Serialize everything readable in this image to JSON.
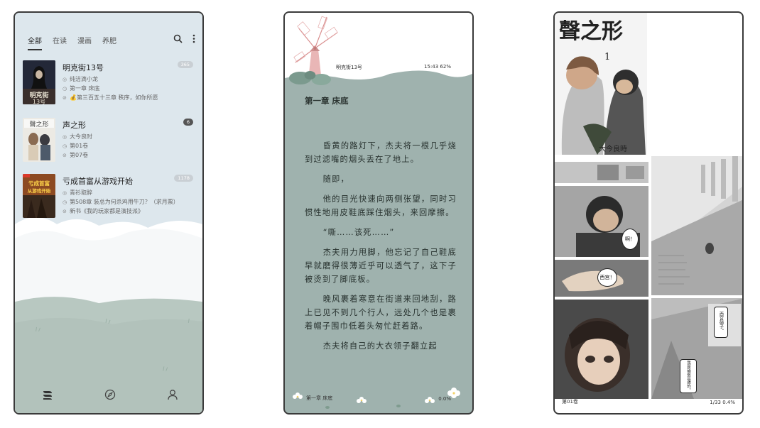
{
  "shelf": {
    "tabs": [
      {
        "label": "全部",
        "active": true
      },
      {
        "label": "在读",
        "active": false
      },
      {
        "label": "漫画",
        "active": false
      },
      {
        "label": "养肥",
        "active": false
      }
    ],
    "books": [
      {
        "title": "明克街13号",
        "author": "纯洁滴小龙",
        "progress": "第一章 床底",
        "latest": "💰第三百五十三章 秩序，如你所愿",
        "badge": "365",
        "cover_text": "明克街13号"
      },
      {
        "title": "声之形",
        "author": "大今良时",
        "progress": "第01卷",
        "latest": "第07卷",
        "badge": "6",
        "cover_text": ""
      },
      {
        "title": "亏成首富从游戏开始",
        "author": "青衫取醉",
        "progress": "第508章 装总为何杀鸡用牛刀？（求月票）",
        "latest": "新书《我的玩家都是演技派》",
        "badge": "1178",
        "cover_text": "亏成首富从游戏开始"
      }
    ],
    "colors": {
      "sky": "#dfe8ee",
      "hill": "#b6c6bf",
      "badge": "#c9cfd4"
    }
  },
  "reader": {
    "book_title": "明克街13号",
    "status": "15:43 62%",
    "chapter_title": "第一章 床底",
    "paragraphs": [
      "昏黄的路灯下，杰夫将一根几乎烧到过滤嘴的烟头丢在了地上。",
      "随即，",
      "他的目光快速向两侧张望，同时习惯性地用皮鞋底踩住烟头，来回摩擦。",
      "“嘶……该死……”",
      "杰夫用力甩脚，他忘记了自己鞋底早就磨得很薄近乎可以透气了，这下子被烫到了脚底板。",
      "晚风裹着寒意在街道来回地刮，路上已见不到几个行人，远处几个也是裹着帽子围巾低着头匆忙赶着路。",
      "杰夫将自己的大衣领子翻立起"
    ],
    "footer_chapter": "第一章 床底",
    "footer_progress": "0.0%",
    "colors": {
      "page": "#9fb2ae",
      "text": "#26302d"
    }
  },
  "manga": {
    "cover_title": "聲之形",
    "volume_number": "1",
    "cover_author": "大今良時",
    "bubbles": [
      "啊！",
      "西宫！",
      "西宫硝子。",
      "我是硝很耳聋的。"
    ],
    "footer_volume": "第01卷",
    "footer_progress": "1/33 0.4%"
  }
}
